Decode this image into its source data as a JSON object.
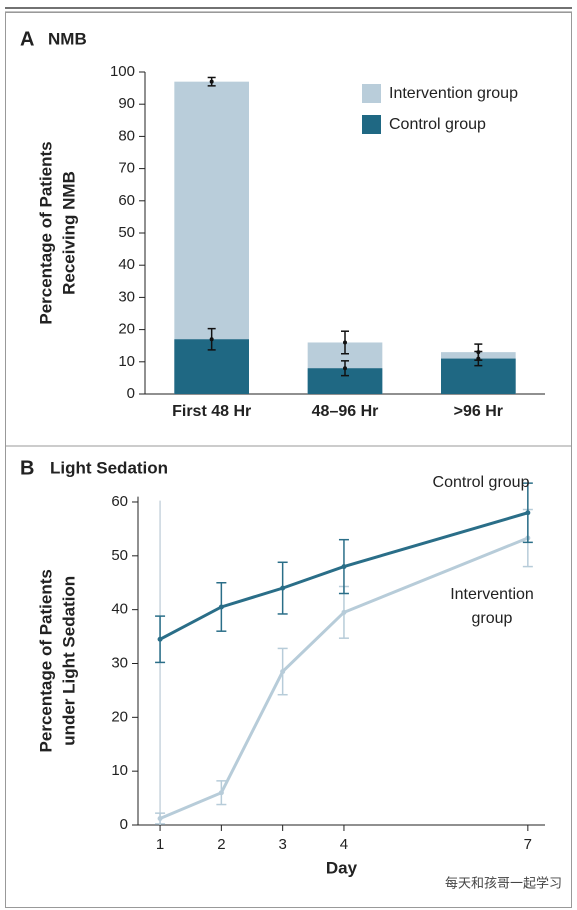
{
  "chart_data": [
    {
      "type": "bar",
      "panel": "A",
      "title": "NMB",
      "ylabel": [
        "Percentage of Patients",
        "Receiving NMB"
      ],
      "categories": [
        "First 48 Hr",
        "48–96 Hr",
        ">96 Hr"
      ],
      "series": [
        {
          "name": "Intervention group",
          "color": "#b9cdda",
          "values": [
            97,
            16,
            13
          ],
          "errors": [
            1.3,
            3.5,
            2.5
          ]
        },
        {
          "name": "Control group",
          "color": "#1f6883",
          "values": [
            17,
            8,
            11
          ],
          "errors": [
            3.3,
            2.3,
            2.2
          ]
        }
      ],
      "ylim": [
        0,
        100
      ],
      "yticks": [
        0,
        10,
        20,
        30,
        40,
        50,
        60,
        70,
        80,
        90,
        100
      ],
      "legend": "upper right"
    },
    {
      "type": "line",
      "panel": "B",
      "title": "Light Sedation",
      "ylabel": [
        "Percentage of Patients",
        "under Light Sedation"
      ],
      "xlabel": "Day",
      "x": [
        1,
        2,
        3,
        4,
        7
      ],
      "series": [
        {
          "name": "Control group",
          "color": "#2a6e88",
          "values": [
            34.5,
            40.5,
            44,
            48,
            58
          ],
          "errors": [
            4.3,
            4.5,
            4.8,
            5,
            5.5
          ]
        },
        {
          "name": "Intervention group",
          "color": "#b7ccd9",
          "values": [
            1.2,
            6,
            28.5,
            39.5,
            53.3
          ],
          "errors": [
            1,
            2.2,
            4.3,
            4.8,
            5.3
          ]
        }
      ],
      "xlim": [
        0.64,
        7.28
      ],
      "xticks": [
        1,
        2,
        3,
        4,
        7
      ],
      "ylim": [
        0,
        61
      ],
      "yticks": [
        0,
        10,
        20,
        30,
        40,
        50,
        60
      ]
    }
  ],
  "watermark": "每天和孩哥一起学习"
}
